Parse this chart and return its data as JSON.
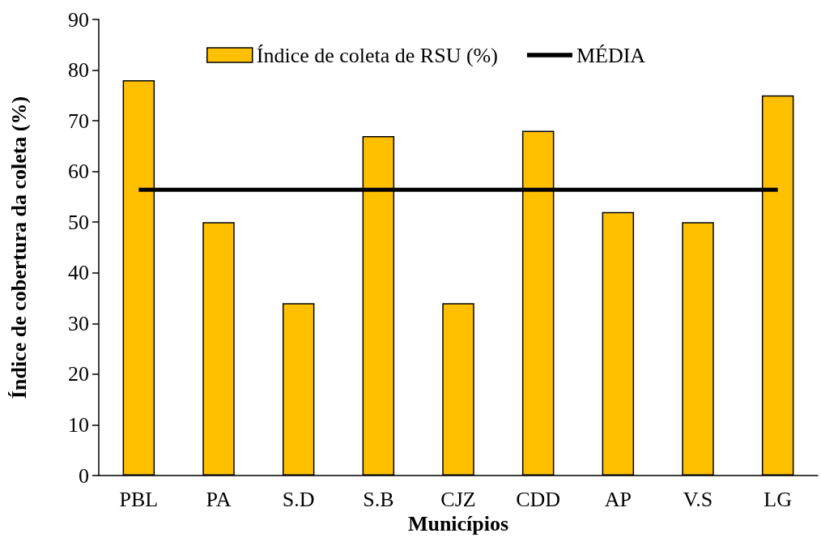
{
  "chart_data": {
    "type": "bar",
    "xlabel": "Municípios",
    "ylabel": "Índice de cobertura da coleta (%)",
    "categories": [
      "PBL",
      "PA",
      "S.D",
      "S.B",
      "CJZ",
      "CDD",
      "AP",
      "V.S",
      "LG"
    ],
    "series": [
      {
        "name": "Índice de coleta de RSU (%)",
        "color": "#ffc000",
        "values": [
          78,
          50,
          34,
          67,
          34,
          68,
          52,
          50,
          75
        ]
      },
      {
        "name": "MÉDIA",
        "type": "line",
        "color": "#000000",
        "values": [
          56.4,
          56.4,
          56.4,
          56.4,
          56.4,
          56.4,
          56.4,
          56.4,
          56.4
        ]
      }
    ],
    "ylim": [
      0,
      90
    ],
    "yticks": [
      0,
      10,
      20,
      30,
      40,
      50,
      60,
      70,
      80,
      90
    ],
    "grid": false,
    "legend": "top",
    "marker": "none",
    "line_style": "solid"
  }
}
